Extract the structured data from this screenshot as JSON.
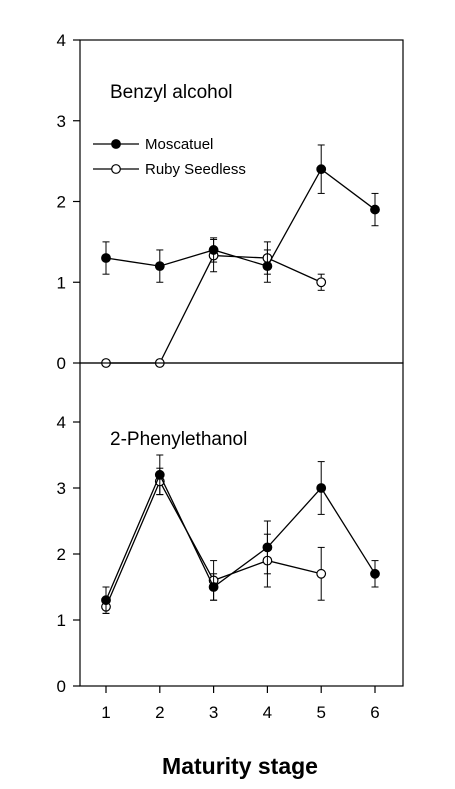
{
  "chart_data": {
    "type": "line",
    "x_title": "Maturity stage",
    "x_ticks": [
      "1",
      "2",
      "3",
      "4",
      "5",
      "6"
    ],
    "legend": {
      "placement": "top-left",
      "entries": [
        {
          "name": "Moscatuel",
          "marker": "filled-circle",
          "color": "#000000"
        },
        {
          "name": "Ruby Seedless",
          "marker": "open-circle",
          "color": "#000000"
        }
      ]
    },
    "panels": [
      {
        "title": "Benzyl alcohol",
        "ylim": [
          0,
          4
        ],
        "y_ticks": [
          "0",
          "1",
          "2",
          "3",
          "4"
        ],
        "series": [
          {
            "name": "Moscatuel",
            "x": [
              1,
              2,
              3,
              4,
              5,
              6
            ],
            "y": [
              1.3,
              1.2,
              1.4,
              1.2,
              2.4,
              1.9
            ],
            "err": [
              0.2,
              0.2,
              0.15,
              0.2,
              0.3,
              0.2
            ]
          },
          {
            "name": "Ruby Seedless",
            "x": [
              1,
              2,
              3,
              4,
              5
            ],
            "y": [
              0,
              0,
              1.33,
              1.3,
              1.0
            ],
            "err": [
              0,
              0,
              0.2,
              0.2,
              0.1
            ]
          }
        ]
      },
      {
        "title": "2-Phenylethanol",
        "ylim": [
          0,
          5
        ],
        "y_ticks": [
          "0",
          "1",
          "2",
          "3",
          "4"
        ],
        "series": [
          {
            "name": "Moscatuel",
            "x": [
              1,
              2,
              3,
              4,
              5,
              6
            ],
            "y": [
              1.3,
              3.2,
              1.5,
              2.1,
              3.0,
              1.7
            ],
            "err": [
              0.2,
              0.3,
              0.2,
              0.4,
              0.4,
              0.2
            ]
          },
          {
            "name": "Ruby Seedless",
            "x": [
              1,
              2,
              3,
              4,
              5
            ],
            "y": [
              1.2,
              3.1,
              1.6,
              1.9,
              1.7
            ],
            "err": [
              0.1,
              0.2,
              0.3,
              0.4,
              0.4
            ]
          }
        ]
      }
    ]
  }
}
